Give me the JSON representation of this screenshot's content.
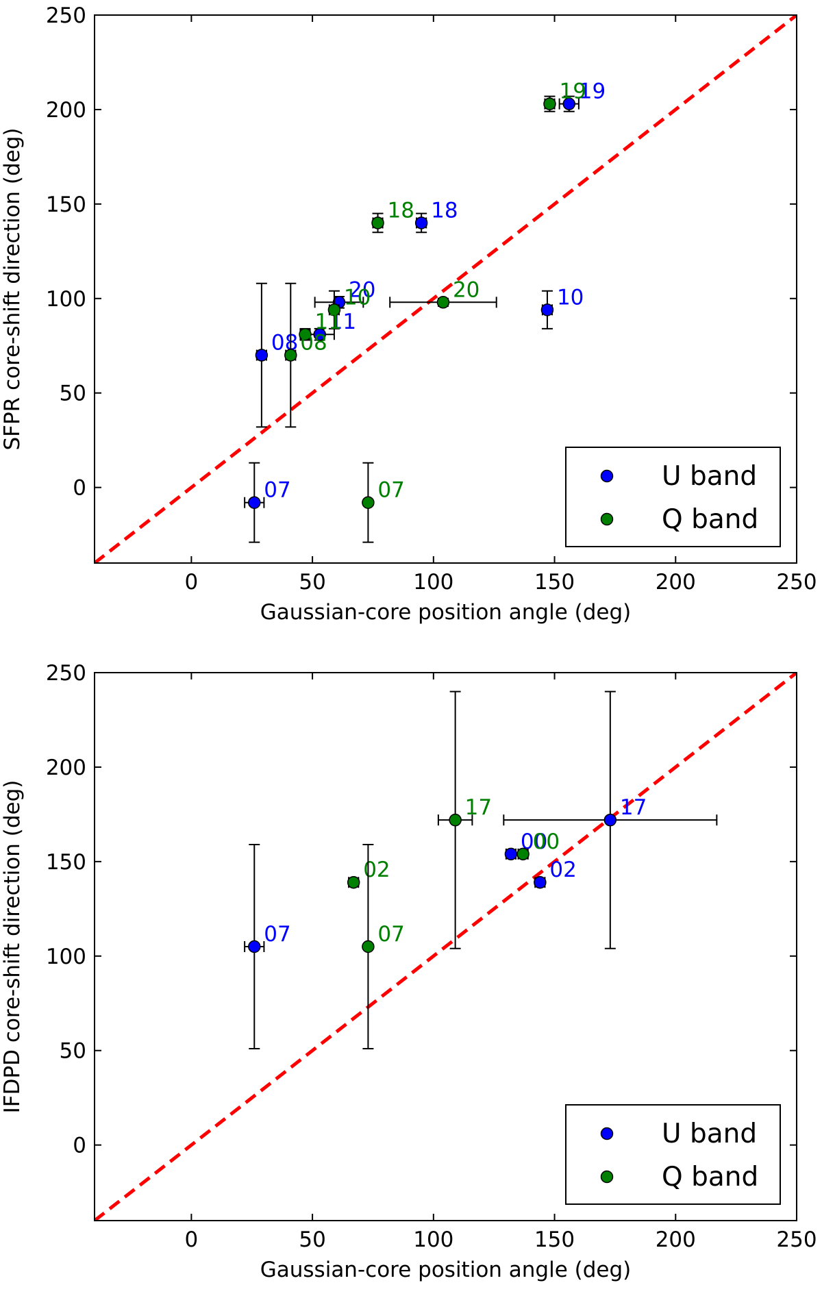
{
  "chart_data": [
    {
      "type": "scatter",
      "xlabel": "Gaussian-core position angle (deg)",
      "ylabel": "SFPR core-shift direction (deg)",
      "xlim": [
        -40,
        250
      ],
      "ylim": [
        -40,
        250
      ],
      "xticks": [
        0,
        50,
        100,
        150,
        200,
        250
      ],
      "yticks": [
        0,
        50,
        100,
        150,
        200,
        250
      ],
      "reference_line": {
        "label": "",
        "slope": 1,
        "intercept": 0,
        "color": "#ff0000",
        "style": "dashed"
      },
      "legend": {
        "position": "lower-right",
        "entries": [
          "U band",
          "Q band"
        ]
      },
      "series": [
        {
          "name": "U band",
          "color": "#0000ff",
          "points": [
            {
              "x": 156,
              "y": 203,
              "xerr": 4,
              "yerr": 4,
              "label": "19"
            },
            {
              "x": 95,
              "y": 140,
              "xerr": 2,
              "yerr": 5,
              "label": "18"
            },
            {
              "x": 61,
              "y": 98,
              "xerr": 10,
              "yerr": 3,
              "label": "20"
            },
            {
              "x": 147,
              "y": 94,
              "xerr": 2,
              "yerr": 10,
              "label": "10"
            },
            {
              "x": 53,
              "y": 81,
              "xerr": 6,
              "yerr": 3,
              "label": "11"
            },
            {
              "x": 29,
              "y": 70,
              "xerr": 2,
              "yerr": 38,
              "label": "08"
            },
            {
              "x": 26,
              "y": -8,
              "xerr": 4,
              "yerr": 21,
              "label": "07"
            }
          ]
        },
        {
          "name": "Q band",
          "color": "#008000",
          "points": [
            {
              "x": 148,
              "y": 203,
              "xerr": 2,
              "yerr": 4,
              "label": "19"
            },
            {
              "x": 77,
              "y": 140,
              "xerr": 2,
              "yerr": 5,
              "label": "18"
            },
            {
              "x": 104,
              "y": 98,
              "xerr": 22,
              "yerr": 2,
              "label": "20"
            },
            {
              "x": 59,
              "y": 94,
              "xerr": 2,
              "yerr": 10,
              "label": "10"
            },
            {
              "x": 47,
              "y": 81,
              "xerr": 2,
              "yerr": 3,
              "label": "11"
            },
            {
              "x": 41,
              "y": 70,
              "xerr": 2,
              "yerr": 38,
              "label": "08"
            },
            {
              "x": 73,
              "y": -8,
              "xerr": 0,
              "yerr": 21,
              "label": "07"
            }
          ]
        }
      ]
    },
    {
      "type": "scatter",
      "xlabel": "Gaussian-core position angle (deg)",
      "ylabel": "IFDPD core-shift direction (deg)",
      "xlim": [
        -40,
        250
      ],
      "ylim": [
        -40,
        250
      ],
      "xticks": [
        0,
        50,
        100,
        150,
        200,
        250
      ],
      "yticks": [
        0,
        50,
        100,
        150,
        200,
        250
      ],
      "reference_line": {
        "label": "",
        "slope": 1,
        "intercept": 0,
        "color": "#ff0000",
        "style": "dashed"
      },
      "legend": {
        "position": "lower-right",
        "entries": [
          "U band",
          "Q band"
        ]
      },
      "series": [
        {
          "name": "U band",
          "color": "#0000ff",
          "points": [
            {
              "x": 132,
              "y": 154,
              "xerr": 2,
              "yerr": 2,
              "label": "00"
            },
            {
              "x": 144,
              "y": 139,
              "xerr": 2,
              "yerr": 2,
              "label": "02"
            },
            {
              "x": 173,
              "y": 172,
              "xerr": 44,
              "yerr": 68,
              "label": "17"
            },
            {
              "x": 26,
              "y": 105,
              "xerr": 4,
              "yerr": 54,
              "label": "07"
            }
          ]
        },
        {
          "name": "Q band",
          "color": "#008000",
          "points": [
            {
              "x": 137,
              "y": 154,
              "xerr": 2,
              "yerr": 2,
              "label": "00"
            },
            {
              "x": 67,
              "y": 139,
              "xerr": 2,
              "yerr": 2,
              "label": "02"
            },
            {
              "x": 109,
              "y": 172,
              "xerr": 7,
              "yerr": 68,
              "label": "17"
            },
            {
              "x": 73,
              "y": 105,
              "xerr": 0,
              "yerr": 54,
              "label": "07"
            }
          ]
        }
      ]
    }
  ]
}
